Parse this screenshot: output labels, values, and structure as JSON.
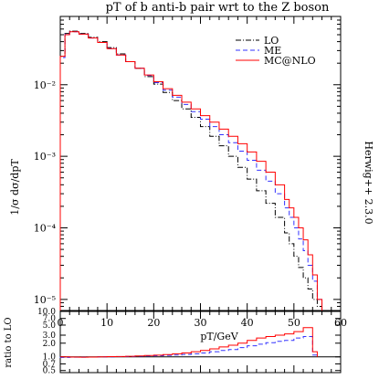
{
  "chart_data": [
    {
      "type": "line",
      "title": "pT of b anti-b pair wrt to the Z boson",
      "side_label": "Herwig++ 2.3.0",
      "ylabel": "1/σ dσ/dpT",
      "xlabel": "pT/GeV",
      "yscale": "log",
      "xlim": [
        0,
        60
      ],
      "ylim": [
        7e-06,
        0.09
      ],
      "y_tick_labels": [
        "10⁻⁵",
        "10⁻⁴",
        "10⁻³",
        "10⁻²"
      ],
      "legend": {
        "placement": "top-right"
      },
      "series": [
        {
          "name": "LO",
          "color": "#000000",
          "style": "dashdot",
          "x": [
            0,
            1,
            2,
            4,
            6,
            8,
            10,
            12,
            14,
            16,
            18,
            20,
            22,
            24,
            26,
            28,
            30,
            32,
            34,
            36,
            38,
            40,
            42,
            44,
            46,
            48,
            49,
            50,
            51,
            52,
            53,
            54,
            55
          ],
          "y": [
            0.025,
            0.052,
            0.056,
            0.052,
            0.046,
            0.04,
            0.033,
            0.027,
            0.021,
            0.017,
            0.013,
            0.0102,
            0.0078,
            0.006,
            0.0046,
            0.0035,
            0.0026,
            0.0019,
            0.0014,
            0.001,
            0.0007,
            0.00048,
            0.00033,
            0.00022,
            0.00014,
            8.5e-05,
            6e-05,
            4e-05,
            2.8e-05,
            2e-05,
            1.4e-05,
            1e-05,
            8e-06
          ]
        },
        {
          "name": "ME",
          "color": "#3333ff",
          "style": "dashed",
          "x": [
            0,
            1,
            2,
            4,
            6,
            8,
            10,
            12,
            14,
            16,
            18,
            20,
            22,
            24,
            26,
            28,
            30,
            32,
            34,
            36,
            38,
            40,
            42,
            44,
            46,
            48,
            49,
            50,
            51,
            52,
            53,
            54,
            55
          ],
          "y": [
            0.024,
            0.051,
            0.055,
            0.051,
            0.045,
            0.039,
            0.032,
            0.026,
            0.021,
            0.017,
            0.0135,
            0.0107,
            0.0084,
            0.0067,
            0.0053,
            0.0042,
            0.0033,
            0.0026,
            0.002,
            0.00155,
            0.00118,
            0.00088,
            0.00064,
            0.00045,
            0.0003,
            0.00019,
            0.00014,
            0.0001,
            7e-05,
            4.8e-05,
            3e-05,
            1.8e-05,
            1e-05
          ]
        },
        {
          "name": "MC@NLO",
          "color": "#ff0000",
          "style": "solid",
          "x": [
            0,
            1,
            2,
            4,
            6,
            8,
            10,
            12,
            14,
            16,
            18,
            20,
            22,
            24,
            26,
            28,
            30,
            32,
            34,
            36,
            38,
            40,
            42,
            44,
            46,
            48,
            49,
            50,
            51,
            52,
            53,
            54,
            55
          ],
          "y": [
            0.025,
            0.05,
            0.055,
            0.051,
            0.045,
            0.039,
            0.032,
            0.026,
            0.021,
            0.017,
            0.0137,
            0.011,
            0.0088,
            0.0071,
            0.0057,
            0.0046,
            0.0037,
            0.003,
            0.0024,
            0.0019,
            0.0015,
            0.00115,
            0.00085,
            0.0006,
            0.0004,
            0.00025,
            0.00019,
            0.00014,
            0.0001,
            6.8e-05,
            4.2e-05,
            2.2e-05,
            1e-05
          ]
        }
      ]
    },
    {
      "type": "line",
      "ylabel": "ratio to LO",
      "xlabel": "pT/GeV",
      "yscale": "log",
      "xlim": [
        0,
        60
      ],
      "ylim": [
        0.45,
        10
      ],
      "x_tick_labels": [
        "0",
        "10",
        "20",
        "30",
        "40",
        "50",
        "60"
      ],
      "y_tick_labels": [
        "10.0",
        "7.0",
        "5.0",
        "3.0",
        "2.0",
        "1.0",
        "0.7",
        "0.5"
      ],
      "series": [
        {
          "name": "ME",
          "color": "#3333ff",
          "style": "dashed",
          "x": [
            0,
            2,
            4,
            6,
            8,
            10,
            12,
            14,
            16,
            18,
            20,
            22,
            24,
            26,
            28,
            30,
            32,
            34,
            36,
            38,
            40,
            42,
            44,
            46,
            48,
            50,
            52,
            54
          ],
          "y": [
            0.97,
            0.98,
            0.98,
            0.99,
            1.0,
            1.0,
            1.01,
            1.02,
            1.03,
            1.05,
            1.06,
            1.08,
            1.1,
            1.13,
            1.17,
            1.22,
            1.3,
            1.38,
            1.45,
            1.6,
            1.75,
            1.9,
            2.05,
            2.2,
            2.3,
            2.6,
            2.8,
            1.1
          ]
        },
        {
          "name": "MC@NLO",
          "color": "#ff0000",
          "style": "solid",
          "x": [
            0,
            2,
            4,
            6,
            8,
            10,
            12,
            14,
            16,
            18,
            20,
            22,
            24,
            26,
            28,
            30,
            32,
            34,
            36,
            38,
            40,
            42,
            44,
            46,
            48,
            50,
            52,
            54
          ],
          "y": [
            1.0,
            0.99,
            0.98,
            0.99,
            1.0,
            1.01,
            1.02,
            1.03,
            1.05,
            1.07,
            1.09,
            1.12,
            1.17,
            1.22,
            1.3,
            1.38,
            1.5,
            1.65,
            1.8,
            2.0,
            2.3,
            2.6,
            2.8,
            3.0,
            3.2,
            3.6,
            4.4,
            1.3
          ]
        }
      ]
    }
  ]
}
